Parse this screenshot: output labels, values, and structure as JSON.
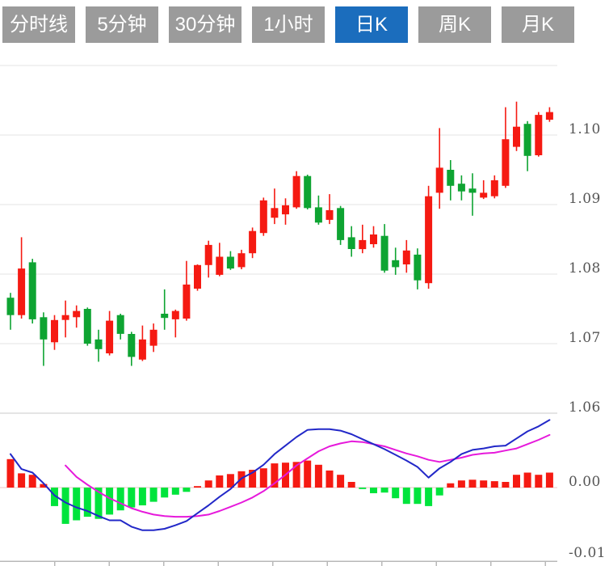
{
  "tabs": {
    "active_index": 4,
    "items": [
      {
        "label": "分时线"
      },
      {
        "label": "5分钟"
      },
      {
        "label": "30分钟"
      },
      {
        "label": "1小时"
      },
      {
        "label": "日K"
      },
      {
        "label": "周K"
      },
      {
        "label": "月K"
      }
    ]
  },
  "colors": {
    "up": "#f51a12",
    "down": "#0ea432",
    "macd_up": "#f51a12",
    "macd_down": "#00e43c",
    "dif_line": "#2228c8",
    "dea_line": "#e619db",
    "grid": "#e3e3e3",
    "panel_border": "#c9c9c9",
    "zero_line": "#eec6c6",
    "bottom_axis": "#b8b8b8",
    "axis_text": "#555555",
    "tab_bg": "#9b9b9b",
    "tab_active_bg": "#1b6dbd",
    "tab_text": "#ffffff"
  },
  "chart_data": {
    "type": "candlestick",
    "title": "",
    "legend": [],
    "up_means": "red = price rose (close > open), green = price fell",
    "price_axis": {
      "side": "right",
      "tick_labels": [
        "1.10",
        "1.09",
        "1.08",
        "1.07",
        "1.06"
      ],
      "tick_values": [
        1.1,
        1.09,
        1.08,
        1.07,
        1.06
      ],
      "top_gridline_value": 1.11,
      "grid": true
    },
    "candles": {
      "count": 50,
      "ohlc": [
        [
          1.0766,
          1.0773,
          1.072,
          1.0741
        ],
        [
          1.0741,
          1.0853,
          1.0736,
          1.0808
        ],
        [
          1.0817,
          1.0822,
          1.0729,
          1.0735
        ],
        [
          1.0738,
          1.0745,
          1.0668,
          1.0706
        ],
        [
          1.0702,
          1.0741,
          1.0691,
          1.0734
        ],
        [
          1.0734,
          1.0762,
          1.0709,
          1.0741
        ],
        [
          1.0738,
          1.0755,
          1.0723,
          1.0747
        ],
        [
          1.075,
          1.0752,
          1.0697,
          1.07
        ],
        [
          1.0706,
          1.072,
          1.0674,
          1.0692
        ],
        [
          1.0686,
          1.0747,
          1.0683,
          1.0733
        ],
        [
          1.0741,
          1.0743,
          1.0706,
          1.0714
        ],
        [
          1.0714,
          1.0717,
          1.0668,
          1.0681
        ],
        [
          1.0677,
          1.0726,
          1.0675,
          1.0706
        ],
        [
          1.0697,
          1.0729,
          1.0688,
          1.072
        ],
        [
          1.0743,
          1.0778,
          1.072,
          1.0737
        ],
        [
          1.0735,
          1.0749,
          1.0709,
          1.0747
        ],
        [
          1.0736,
          1.0819,
          1.0733,
          1.0785
        ],
        [
          1.0779,
          1.0814,
          1.0776,
          1.0813
        ],
        [
          1.0813,
          1.0848,
          1.0795,
          1.0842
        ],
        [
          1.0799,
          1.0845,
          1.0797,
          1.0825
        ],
        [
          1.0825,
          1.0833,
          1.0806,
          1.0808
        ],
        [
          1.081,
          1.0835,
          1.0807,
          1.083
        ],
        [
          1.083,
          1.0867,
          1.0823,
          1.0862
        ],
        [
          1.0859,
          1.091,
          1.0855,
          1.0906
        ],
        [
          1.0881,
          1.0923,
          1.0872,
          1.0895
        ],
        [
          1.0886,
          1.0909,
          1.0871,
          1.0899
        ],
        [
          1.0896,
          1.0948,
          1.0894,
          1.0941
        ],
        [
          1.0941,
          1.0943,
          1.0893,
          1.0895
        ],
        [
          1.0896,
          1.0913,
          1.0871,
          1.0874
        ],
        [
          1.0878,
          1.0915,
          1.0872,
          1.0892
        ],
        [
          1.0895,
          1.0898,
          1.0842,
          1.0849
        ],
        [
          1.0853,
          1.0869,
          1.0825,
          1.0836
        ],
        [
          1.0836,
          1.0871,
          1.083,
          1.0849
        ],
        [
          1.0843,
          1.0869,
          1.0838,
          1.0857
        ],
        [
          1.0855,
          1.0872,
          1.0802,
          1.0805
        ],
        [
          1.082,
          1.0838,
          1.0799,
          1.081
        ],
        [
          1.0814,
          1.0849,
          1.0802,
          1.0834
        ],
        [
          1.0828,
          1.0837,
          1.0778,
          1.0791
        ],
        [
          1.0787,
          1.0927,
          1.0779,
          1.0912
        ],
        [
          1.0917,
          1.101,
          1.0894,
          1.0953
        ],
        [
          1.095,
          1.0964,
          1.0906,
          1.0927
        ],
        [
          1.093,
          1.0942,
          1.0906,
          1.0919
        ],
        [
          1.0923,
          1.0945,
          1.0884,
          1.0917
        ],
        [
          1.091,
          1.0935,
          1.0908,
          1.0917
        ],
        [
          1.0912,
          1.0942,
          1.0909,
          1.0935
        ],
        [
          1.0927,
          1.104,
          1.0924,
          1.0994
        ],
        [
          1.0983,
          1.1048,
          1.0977,
          1.1012
        ],
        [
          1.1016,
          1.102,
          1.0948,
          1.097
        ],
        [
          1.0971,
          1.1033,
          1.0969,
          1.1029
        ],
        [
          1.1022,
          1.104,
          1.1019,
          1.1033
        ]
      ]
    },
    "macd": {
      "axis_tick_labels": [
        "0.00",
        "-0.01"
      ],
      "axis_tick_values": [
        0,
        -0.01
      ],
      "histogram": [
        0.004,
        0.002,
        0.0018,
        0.0005,
        -0.0026,
        -0.0051,
        -0.0046,
        -0.0041,
        -0.0044,
        -0.0038,
        -0.0032,
        -0.0028,
        -0.0025,
        -0.002,
        -0.0014,
        -0.001,
        -0.0006,
        0.0002,
        0.001,
        0.0017,
        0.0019,
        0.0023,
        0.0025,
        0.0027,
        0.0034,
        0.0035,
        0.0036,
        0.0038,
        0.0032,
        0.0024,
        0.0018,
        0.0008,
        -0.0002,
        -0.0008,
        -0.0007,
        -0.0015,
        -0.0023,
        -0.0023,
        -0.0026,
        -0.0011,
        0.0006,
        0.001,
        0.0011,
        0.001,
        0.0009,
        0.0008,
        0.0018,
        0.0021,
        0.0018,
        0.0021
      ],
      "dif": [
        0.0047,
        0.0026,
        0.0021,
        0.0006,
        -0.0011,
        -0.0021,
        -0.0028,
        -0.0033,
        -0.004,
        -0.0046,
        -0.0046,
        -0.0055,
        -0.006,
        -0.006,
        -0.0058,
        -0.0053,
        -0.0047,
        -0.0036,
        -0.0025,
        -0.0013,
        -0.0002,
        0.0013,
        0.0021,
        0.0032,
        0.0047,
        0.0059,
        0.0071,
        0.0081,
        0.0082,
        0.0082,
        0.008,
        0.0075,
        0.0068,
        0.0061,
        0.0054,
        0.0046,
        0.0038,
        0.0029,
        0.0014,
        0.0027,
        0.0036,
        0.0047,
        0.0053,
        0.0055,
        0.0058,
        0.0059,
        0.0069,
        0.0079,
        0.0086,
        0.0095
      ],
      "dea": [
        null,
        null,
        null,
        null,
        null,
        0.0031,
        0.0015,
        0.0004,
        -0.0006,
        -0.0015,
        -0.0022,
        -0.0029,
        -0.0034,
        -0.0038,
        -0.004,
        -0.0041,
        -0.0041,
        -0.004,
        -0.0038,
        -0.0033,
        -0.0027,
        -0.0021,
        -0.0014,
        -0.0005,
        0.0006,
        0.0018,
        0.0031,
        0.0041,
        0.0051,
        0.0058,
        0.0062,
        0.0065,
        0.0064,
        0.0061,
        0.0058,
        0.0053,
        0.0048,
        0.0044,
        0.0039,
        0.0036,
        0.0039,
        0.0042,
        0.0046,
        0.0048,
        0.0049,
        0.0052,
        0.0055,
        0.0061,
        0.0067,
        0.0074
      ]
    }
  }
}
